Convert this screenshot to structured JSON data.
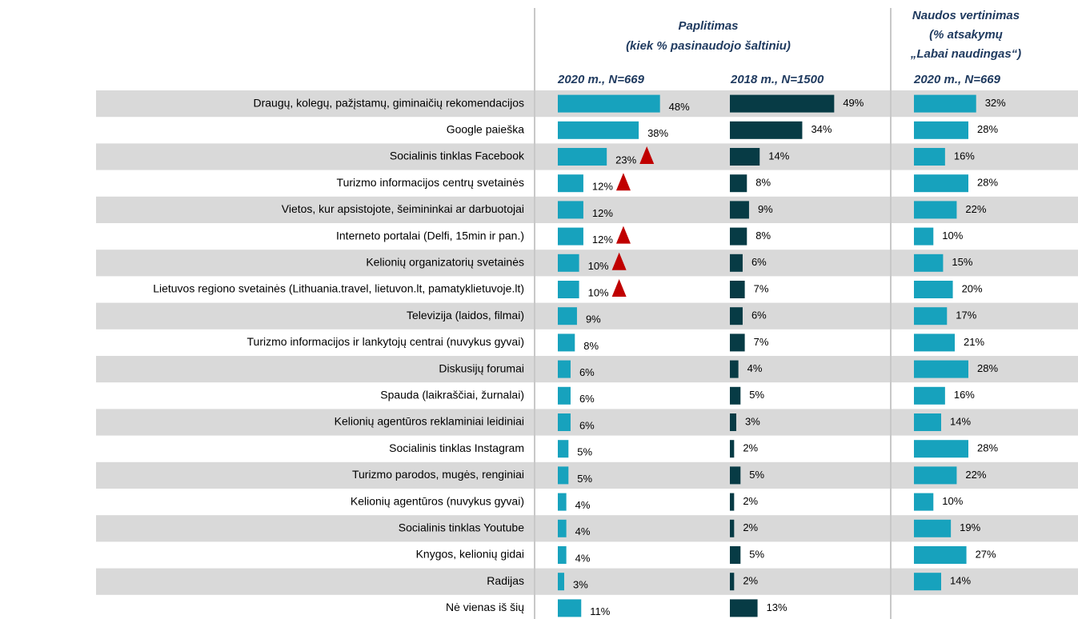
{
  "chart_data": [
    {
      "type": "bar",
      "orientation": "horizontal",
      "title": [
        "Paplitimas",
        "(kiek % pasinaudojo  šaltiniu)"
      ],
      "categories": [
        "Draugų, kolegų, pažįstamų, giminaičių rekomendacijos",
        "Google paieška",
        "Socialinis tinklas Facebook",
        "Turizmo informacijos centrų svetainės",
        "Vietos, kur apsistojote, šeimininkai ar darbuotojai",
        "Interneto portalai (Delfi, 15min ir pan.)",
        "Kelionių organizatorių svetainės",
        "Lietuvos regiono svetainės (Lithuania.travel, lietuvon.lt, pamatyklietuvoje.lt)",
        "Televizija (laidos, filmai)",
        "Turizmo informacijos ir lankytojų centrai (nuvykus gyvai)",
        "Diskusijų forumai",
        "Spauda (laikraščiai, žurnalai)",
        "Kelionių agentūros reklaminiai leidiniai",
        "Socialinis tinklas Instagram",
        "Turizmo parodos, mugės, renginiai",
        "Kelionių agentūros (nuvykus gyvai)",
        "Socialinis tinklas Youtube",
        "Knygos, kelionių gidai",
        "Radijas",
        "Nė vienas iš šių"
      ],
      "xlim": [
        0,
        50
      ],
      "series": [
        {
          "name": "2020 m., N=669",
          "color": "#17a2bd",
          "values": [
            48,
            38,
            23,
            12,
            12,
            12,
            10,
            10,
            9,
            8,
            6,
            6,
            6,
            5,
            5,
            4,
            4,
            4,
            3,
            11
          ],
          "value_labels": [
            "48%",
            "38%",
            "23%",
            "12%",
            "12%",
            "12%",
            "10%",
            "10%",
            "9%",
            "8%",
            "6%",
            "6%",
            "6%",
            "5%",
            "5%",
            "4%",
            "4%",
            "4%",
            "3%",
            "11%"
          ],
          "increase": [
            false,
            false,
            true,
            true,
            false,
            true,
            true,
            true,
            false,
            false,
            false,
            false,
            false,
            false,
            false,
            false,
            false,
            false,
            false,
            false
          ],
          "increase_color": "#c00000"
        },
        {
          "name": "2018 m., N=1500",
          "color": "#073b45",
          "values": [
            49,
            34,
            14,
            8,
            9,
            8,
            6,
            7,
            6,
            7,
            4,
            5,
            3,
            2,
            5,
            2,
            2,
            5,
            2,
            13
          ],
          "value_labels": [
            "49%",
            "34%",
            "14%",
            "8%",
            "9%",
            "8%",
            "6%",
            "7%",
            "6%",
            "7%",
            "4%",
            "5%",
            "3%",
            "2%",
            "5%",
            "2%",
            "2%",
            "5%",
            "2%",
            "13%"
          ]
        }
      ]
    },
    {
      "type": "bar",
      "orientation": "horizontal",
      "title": [
        "Naudos vertinimas",
        "(% atsakymų",
        "„Labai naudingas“)"
      ],
      "xlim": [
        0,
        35
      ],
      "series": [
        {
          "name": "2020 m., N=669",
          "color": "#17a2bd",
          "values": [
            32,
            28,
            16,
            28,
            22,
            10,
            15,
            20,
            17,
            21,
            28,
            16,
            14,
            28,
            22,
            10,
            19,
            27,
            14,
            null
          ],
          "value_labels": [
            "32%",
            "28%",
            "16%",
            "28%",
            "22%",
            "10%",
            "15%",
            "20%",
            "17%",
            "21%",
            "28%",
            "16%",
            "14%",
            "28%",
            "22%",
            "10%",
            "19%",
            "27%",
            "14%",
            null
          ]
        }
      ]
    }
  ]
}
